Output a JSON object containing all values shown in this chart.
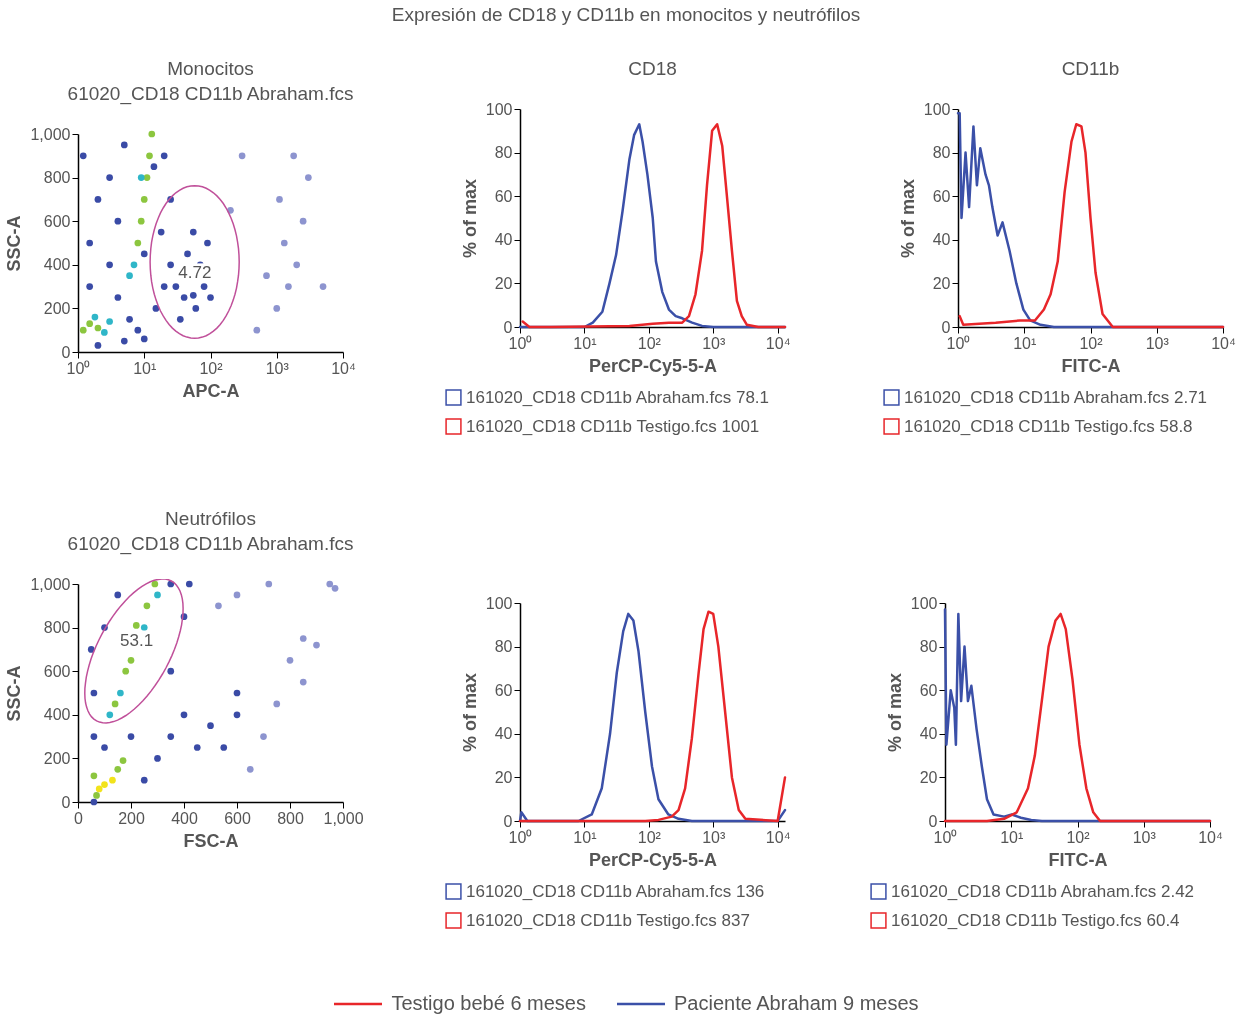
{
  "chart_data": [
    {
      "type": "other",
      "title": "Expresión de CD18 y CD11b en monocitos y neutrófilos"
    },
    {
      "type": "scatter",
      "title": "Monocitos",
      "subtitle": "61020_CD18 CD11b Abraham.fcs",
      "xlabel": "APC-A",
      "ylabel": "SSC-A",
      "log": "x",
      "marker": "circle",
      "xlim": [
        1,
        10000
      ],
      "xticks": [
        {
          "value": 1,
          "label": "10⁰"
        },
        {
          "value": 10,
          "label": "10¹"
        },
        {
          "value": 100,
          "label": "10²"
        },
        {
          "value": 1000,
          "label": "10³"
        },
        {
          "value": 10000,
          "label": "10⁴"
        }
      ],
      "ylim": [
        0,
        1000
      ],
      "yticks": [
        0,
        200,
        400,
        600,
        800,
        {
          "value": 1000,
          "label": "1,000"
        }
      ],
      "annotations": [
        "4.72"
      ],
      "series": [
        {
          "x": [
            1.2,
            1.5,
            2,
            2.5,
            1.8,
            3,
            8,
            9,
            10,
            11,
            12,
            13,
            7,
            6,
            10,
            9,
            14,
            1.5,
            1.5,
            2,
            1.2,
            3,
            4,
            3,
            5,
            20,
            25,
            18,
            4,
            6,
            8,
            10,
            2,
            5,
            20,
            15,
            30,
            40,
            55,
            60,
            70,
            45,
            35,
            80,
            90,
            25,
            55,
            100,
            1000,
            1500,
            2000,
            1300,
            2500,
            3000,
            1800,
            1100,
            700,
            5000,
            500,
            200,
            300
          ],
          "values": [
            100,
            130,
            110,
            90,
            160,
            140,
            500,
            600,
            700,
            800,
            900,
            1000,
            400,
            350,
            450,
            800,
            850,
            300,
            500,
            700,
            900,
            400,
            600,
            800,
            950,
            900,
            700,
            550,
            250,
            150,
            100,
            60,
            30,
            50,
            300,
            200,
            300,
            250,
            260,
            200,
            400,
            450,
            150,
            300,
            500,
            400,
            550,
            250,
            200,
            300,
            400,
            500,
            600,
            800,
            900,
            700,
            350,
            300,
            100,
            650,
            900
          ],
          "colors": [
            "#8cc63f",
            "#8cc63f",
            "#8cc63f",
            "#2fb6c8",
            "#2fb6c8",
            "#2fb6c8",
            "#8cc63f",
            "#8cc63f",
            "#8cc63f",
            "#8cc63f",
            "#8cc63f",
            "#8cc63f",
            "#2fb6c8",
            "#2fb6c8",
            "#3a4ba6",
            "#2fb6c8",
            "#3a4ba6",
            "#3a4ba6",
            "#3a4ba6",
            "#3a4ba6",
            "#3a4ba6",
            "#3a4ba6",
            "#3a4ba6",
            "#3a4ba6",
            "#3a4ba6",
            "#3a4ba6",
            "#3a4ba6",
            "#3a4ba6",
            "#3a4ba6",
            "#3a4ba6",
            "#3a4ba6",
            "#3a4ba6",
            "#3a4ba6",
            "#3a4ba6",
            "#3a4ba6",
            "#3a4ba6",
            "#3a4ba6",
            "#3a4ba6",
            "#3a4ba6",
            "#3a4ba6",
            "#3a4ba6",
            "#3a4ba6",
            "#3a4ba6",
            "#3a4ba6",
            "#3a4ba6",
            "#3a4ba6",
            "#3a4ba6",
            "#3a4ba6",
            "#8d94cf",
            "#8d94cf",
            "#8d94cf",
            "#8d94cf",
            "#8d94cf",
            "#8d94cf",
            "#8d94cf",
            "#8d94cf",
            "#8d94cf",
            "#8d94cf",
            "#8d94cf",
            "#8d94cf",
            "#8d94cf"
          ]
        }
      ]
    },
    {
      "type": "line",
      "title": "CD18",
      "xlabel": "PerCP-Cy5-5-A",
      "ylabel": "% of max",
      "log": "x",
      "legend": "bottom",
      "line_style": "solid",
      "xlim": [
        1,
        13000
      ],
      "xticks": [
        {
          "value": 1,
          "label": "10⁰"
        },
        {
          "value": 10,
          "label": "10¹"
        },
        {
          "value": 100,
          "label": "10²"
        },
        {
          "value": 1000,
          "label": "10³"
        },
        {
          "value": 10000,
          "label": "10⁴"
        }
      ],
      "ylim": [
        0,
        100
      ],
      "yticks": [
        0,
        20,
        40,
        60,
        80,
        100
      ],
      "series": [
        {
          "name": "161020_CD18 CD11b Abraham.fcs 78.1",
          "color": "#3b50a8",
          "x": [
            1,
            5,
            10,
            13.5,
            19,
            24.5,
            31,
            39,
            50,
            59,
            71,
            80,
            95,
            115,
            129,
            162,
            205,
            261,
            330,
            470,
            670,
            1000,
            13000
          ],
          "values": [
            0,
            0,
            0,
            2,
            7,
            20,
            33,
            53,
            77,
            88,
            93,
            85,
            70,
            50,
            30,
            16,
            8,
            5,
            4,
            2,
            0.5,
            0,
            0
          ]
        },
        {
          "name": "161020_CD18 CD11b Testigo.fcs 1001",
          "color": "#e8262a",
          "x": [
            1.1,
            1.4,
            3,
            50,
            115,
            205,
            330,
            420,
            530,
            670,
            800,
            960,
            1150,
            1380,
            1630,
            1950,
            2330,
            2770,
            3330,
            5000,
            13000
          ],
          "values": [
            2.5,
            0,
            0,
            0.5,
            1.5,
            2,
            2,
            5,
            15,
            35,
            65,
            90,
            93,
            83,
            60,
            35,
            12,
            5,
            1,
            0,
            0
          ]
        }
      ]
    },
    {
      "type": "line",
      "title": "CD11b",
      "xlabel": "FITC-A",
      "ylabel": "% of max",
      "log": "x",
      "legend": "bottom",
      "line_style": "solid",
      "xlim": [
        1,
        10000
      ],
      "xticks": [
        {
          "value": 1,
          "label": "10⁰"
        },
        {
          "value": 10,
          "label": "10¹"
        },
        {
          "value": 100,
          "label": "10²"
        },
        {
          "value": 1000,
          "label": "10³"
        },
        {
          "value": 10000,
          "label": "10⁴"
        }
      ],
      "ylim": [
        0,
        100
      ],
      "yticks": [
        0,
        20,
        40,
        60,
        80,
        100
      ],
      "series": [
        {
          "name": "161020_CD18 CD11b Abraham.fcs 2.71",
          "color": "#3b50a8",
          "x": [
            1,
            1.06,
            1.13,
            1.3,
            1.47,
            1.71,
            1.93,
            2.17,
            2.6,
            2.93,
            3.3,
            3.96,
            4.7,
            6,
            7.6,
            9.7,
            12.3,
            17.6,
            28,
            10000
          ],
          "values": [
            98,
            98,
            50,
            80,
            55,
            92,
            65,
            82,
            70,
            65,
            55,
            42,
            48,
            35,
            20,
            8,
            3,
            1,
            0,
            0
          ]
        },
        {
          "name": "161020_CD18 CD11b Testigo.fcs 58.8",
          "color": "#e8262a",
          "x": [
            1.06,
            1.2,
            3.7,
            8.6,
            14.5,
            19.8,
            25,
            32,
            40.7,
            51.6,
            61,
            73,
            84,
            100,
            119,
            152,
            217,
            10000
          ],
          "values": [
            5,
            1,
            2,
            3,
            3,
            8,
            15,
            30,
            62,
            85,
            93,
            92,
            80,
            50,
            25,
            6,
            0,
            0
          ]
        }
      ]
    },
    {
      "type": "scatter",
      "title": "Neutrófilos",
      "subtitle": "61020_CD18 CD11b Abraham.fcs",
      "xlabel": "FSC-A",
      "ylabel": "SSC-A",
      "marker": "circle",
      "xlim": [
        0,
        1000
      ],
      "xticks": [
        0,
        200,
        400,
        600,
        800,
        {
          "value": 1000,
          "label": "1,000"
        }
      ],
      "ylim": [
        0,
        1000
      ],
      "yticks": [
        0,
        200,
        400,
        600,
        800,
        {
          "value": 1000,
          "label": "1,000"
        }
      ],
      "annotations": [
        "53.1"
      ],
      "series": [
        {
          "x": [
            100,
            130,
            80,
            150,
            70,
            170,
            60,
            140,
            180,
            220,
            260,
            290,
            200,
            120,
            250,
            300,
            160,
            60,
            60,
            100,
            150,
            350,
            400,
            350,
            400,
            500,
            600,
            450,
            550,
            300,
            250,
            60,
            100,
            200,
            350,
            600,
            50,
            420,
            650,
            700,
            750,
            800,
            850,
            900,
            950,
            970,
            720,
            600,
            850,
            530
          ],
          "values": [
            80,
            100,
            60,
            150,
            30,
            190,
            120,
            450,
            600,
            810,
            900,
            1000,
            650,
            400,
            800,
            950,
            500,
            300,
            500,
            800,
            950,
            1000,
            850,
            600,
            400,
            350,
            400,
            250,
            250,
            200,
            100,
            0,
            250,
            300,
            300,
            500,
            700,
            1000,
            150,
            300,
            450,
            650,
            750,
            720,
            1000,
            980,
            1000,
            950,
            550,
            900
          ],
          "colors": [
            "#f2e31b",
            "#f2e31b",
            "#f2e31b",
            "#8cc63f",
            "#8cc63f",
            "#8cc63f",
            "#8cc63f",
            "#8cc63f",
            "#8cc63f",
            "#8cc63f",
            "#8cc63f",
            "#8cc63f",
            "#8cc63f",
            "#2fb6c8",
            "#2fb6c8",
            "#2fb6c8",
            "#2fb6c8",
            "#3a4ba6",
            "#3a4ba6",
            "#3a4ba6",
            "#3a4ba6",
            "#3a4ba6",
            "#3a4ba6",
            "#3a4ba6",
            "#3a4ba6",
            "#3a4ba6",
            "#3a4ba6",
            "#3a4ba6",
            "#3a4ba6",
            "#3a4ba6",
            "#3a4ba6",
            "#3a4ba6",
            "#3a4ba6",
            "#3a4ba6",
            "#3a4ba6",
            "#3a4ba6",
            "#3a4ba6",
            "#3a4ba6",
            "#8d94cf",
            "#8d94cf",
            "#8d94cf",
            "#8d94cf",
            "#8d94cf",
            "#8d94cf",
            "#8d94cf",
            "#8d94cf",
            "#8d94cf",
            "#8d94cf",
            "#8d94cf",
            "#8d94cf"
          ]
        }
      ]
    },
    {
      "type": "line",
      "xlabel": "PerCP-Cy5-5-A",
      "ylabel": "% of max",
      "log": "x",
      "legend": "bottom",
      "line_style": "solid",
      "xlim": [
        1,
        13000
      ],
      "xticks": [
        {
          "value": 1,
          "label": "10⁰"
        },
        {
          "value": 10,
          "label": "10¹"
        },
        {
          "value": 100,
          "label": "10²"
        },
        {
          "value": 1000,
          "label": "10³"
        },
        {
          "value": 10000,
          "label": "10⁴"
        }
      ],
      "ylim": [
        0,
        100
      ],
      "yticks": [
        0,
        20,
        40,
        60,
        80,
        100
      ],
      "series": [
        {
          "name": "161020_CD18 CD11b Abraham.fcs 136",
          "color": "#3b50a8",
          "x": [
            1,
            1.05,
            1.3,
            8.1,
            13,
            18.6,
            25,
            31.8,
            40,
            48,
            57.6,
            69,
            88,
            112,
            141,
            201,
            289,
            466,
            10000,
            13000
          ],
          "values": [
            0,
            4,
            0,
            0,
            3,
            15,
            40,
            68,
            87,
            95,
            92,
            78,
            50,
            25,
            10,
            3,
            1,
            0,
            0,
            5
          ]
        },
        {
          "name": "161020_CD18 CD11b Testigo.fcs 837",
          "color": "#e8262a",
          "x": [
            1,
            88,
            141,
            227,
            289,
            366,
            466,
            593,
            707,
            843,
            1000,
            1200,
            1530,
            1950,
            2490,
            3150,
            10000,
            13000
          ],
          "values": [
            0,
            0,
            0.5,
            2,
            5,
            15,
            38,
            68,
            88,
            96,
            95,
            80,
            50,
            20,
            5,
            1,
            0,
            20
          ]
        }
      ]
    },
    {
      "type": "line",
      "xlabel": "FITC-A",
      "ylabel": "% of max",
      "log": "x",
      "legend": "bottom",
      "line_style": "solid",
      "xlim": [
        1,
        10000
      ],
      "xticks": [
        {
          "value": 1,
          "label": "10⁰"
        },
        {
          "value": 10,
          "label": "10¹"
        },
        {
          "value": 100,
          "label": "10²"
        },
        {
          "value": 1000,
          "label": "10³"
        },
        {
          "value": 10000,
          "label": "10⁴"
        }
      ],
      "ylim": [
        0,
        100
      ],
      "yticks": [
        0,
        20,
        40,
        60,
        80,
        100
      ],
      "series": [
        {
          "name": "161020_CD18 CD11b Abraham.fcs 2.42",
          "color": "#3b50a8",
          "x": [
            1,
            1.05,
            1.22,
            1.38,
            1.46,
            1.59,
            1.75,
            1.97,
            2.22,
            2.5,
            3,
            3.6,
            4.3,
            5.4,
            7.8,
            10.2,
            14,
            20,
            29,
            10000
          ],
          "values": [
            97,
            35,
            60,
            52,
            35,
            95,
            55,
            80,
            55,
            62,
            42,
            25,
            10,
            3,
            2,
            3,
            1.5,
            0.5,
            0,
            0
          ]
        },
        {
          "name": "161020_CD18 CD11b Testigo.fcs 60.4",
          "color": "#e8262a",
          "x": [
            1,
            4.3,
            7.8,
            12.1,
            17.9,
            22.7,
            28.9,
            36.6,
            46.6,
            55.6,
            66.5,
            84,
            107,
            136,
            173,
            219,
            10000
          ],
          "values": [
            0,
            0,
            1,
            4,
            15,
            30,
            55,
            80,
            92,
            95,
            88,
            65,
            35,
            15,
            4,
            0,
            0
          ]
        }
      ]
    },
    {
      "type": "other",
      "legend": "bottom",
      "series": [
        {
          "name": "Testigo bebé 6 meses",
          "color": "#e8262a"
        },
        {
          "name": "Paciente Abraham 9 meses",
          "color": "#3b50a8"
        }
      ]
    }
  ]
}
